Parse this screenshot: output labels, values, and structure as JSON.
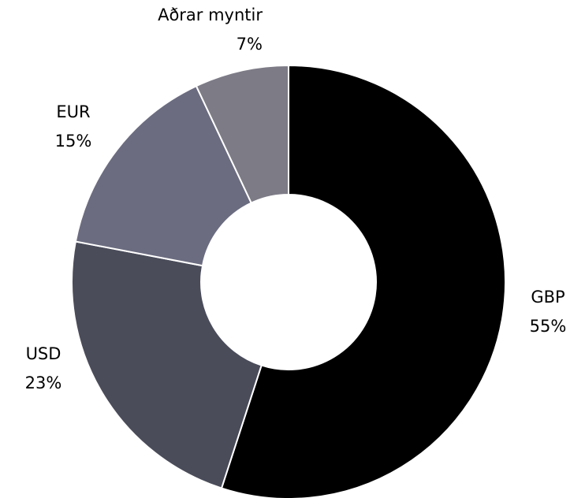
{
  "chart_data": {
    "type": "donut",
    "categories": [
      "GBP",
      "USD",
      "EUR",
      "Aðrar myntir"
    ],
    "values": [
      55,
      23,
      15,
      7
    ],
    "value_labels": [
      "55%",
      "23%",
      "15%",
      "7%"
    ],
    "colors": [
      "#000000",
      "#4a4c5a",
      "#6b6c80",
      "#7c7b86"
    ]
  }
}
